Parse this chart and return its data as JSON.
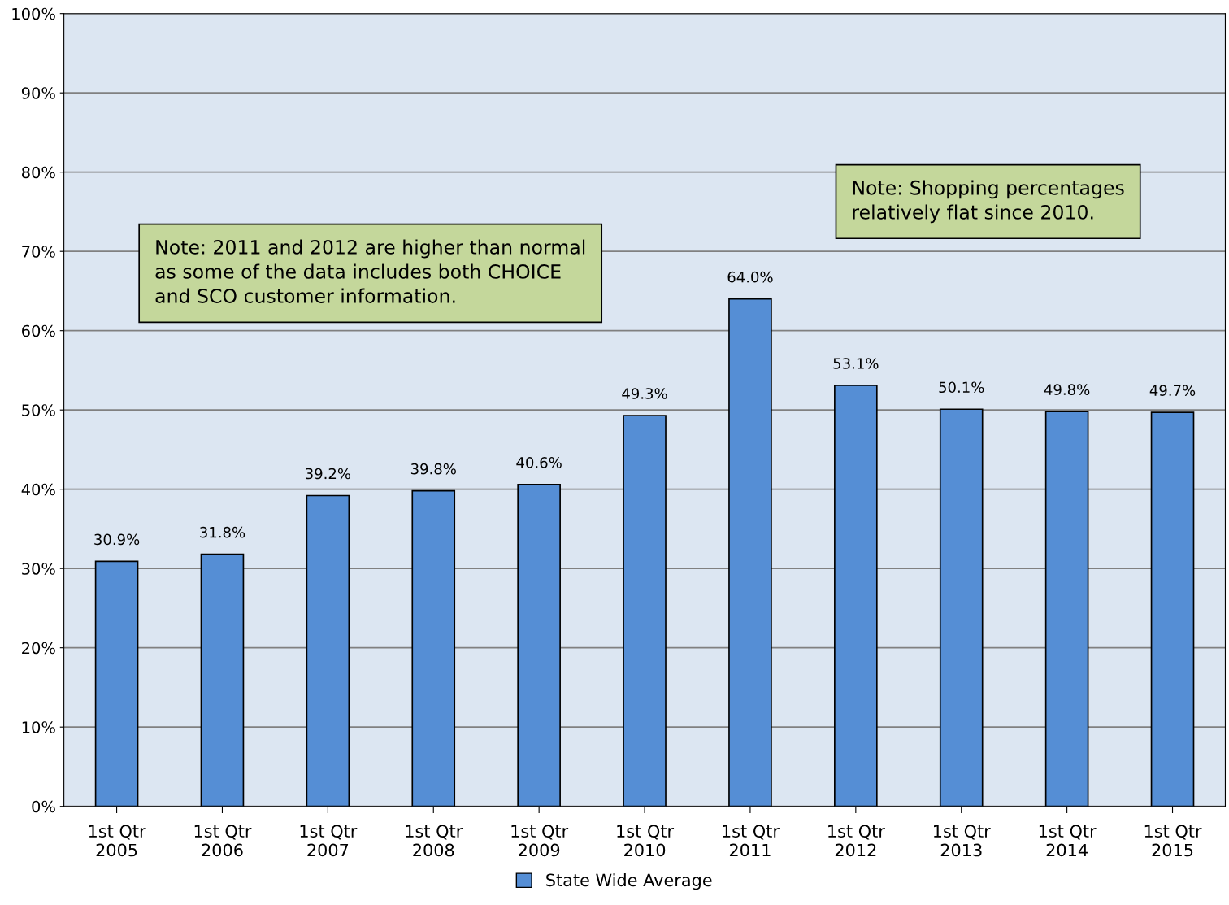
{
  "chart_data": {
    "type": "bar",
    "categories": [
      "1st Qtr\n2005",
      "1st Qtr\n2006",
      "1st Qtr\n2007",
      "1st Qtr\n2008",
      "1st Qtr\n2009",
      "1st Qtr\n2010",
      "1st Qtr\n2011",
      "1st Qtr\n2012",
      "1st Qtr\n2013",
      "1st Qtr\n2014",
      "1st Qtr\n2015"
    ],
    "series": [
      {
        "name": "State Wide Average",
        "color": "#558ed5",
        "values": [
          30.9,
          31.8,
          39.2,
          39.8,
          40.6,
          49.3,
          64.0,
          53.1,
          50.1,
          49.8,
          49.7
        ],
        "value_labels": [
          "30.9%",
          "31.8%",
          "39.2%",
          "39.8%",
          "40.6%",
          "49.3%",
          "64.0%",
          "53.1%",
          "50.1%",
          "49.8%",
          "49.7%"
        ]
      }
    ],
    "ylim": [
      0,
      100
    ],
    "yticks": [
      {
        "value": 0,
        "label": "0%"
      },
      {
        "value": 10,
        "label": "10%"
      },
      {
        "value": 20,
        "label": "20%"
      },
      {
        "value": 30,
        "label": "30%"
      },
      {
        "value": 40,
        "label": "40%"
      },
      {
        "value": 50,
        "label": "50%"
      },
      {
        "value": 60,
        "label": "60%"
      },
      {
        "value": 70,
        "label": "70%"
      },
      {
        "value": 80,
        "label": "80%"
      },
      {
        "value": 90,
        "label": "90%"
      },
      {
        "value": 100,
        "label": "100%"
      }
    ],
    "grid": "y",
    "legend": "bottom",
    "annotations": [
      "Note: 2011 and 2012 are higher than normal\nas some of the data includes both CHOICE\nand SCO customer information.",
      "Note: Shopping percentages\nrelatively flat since 2010."
    ]
  }
}
